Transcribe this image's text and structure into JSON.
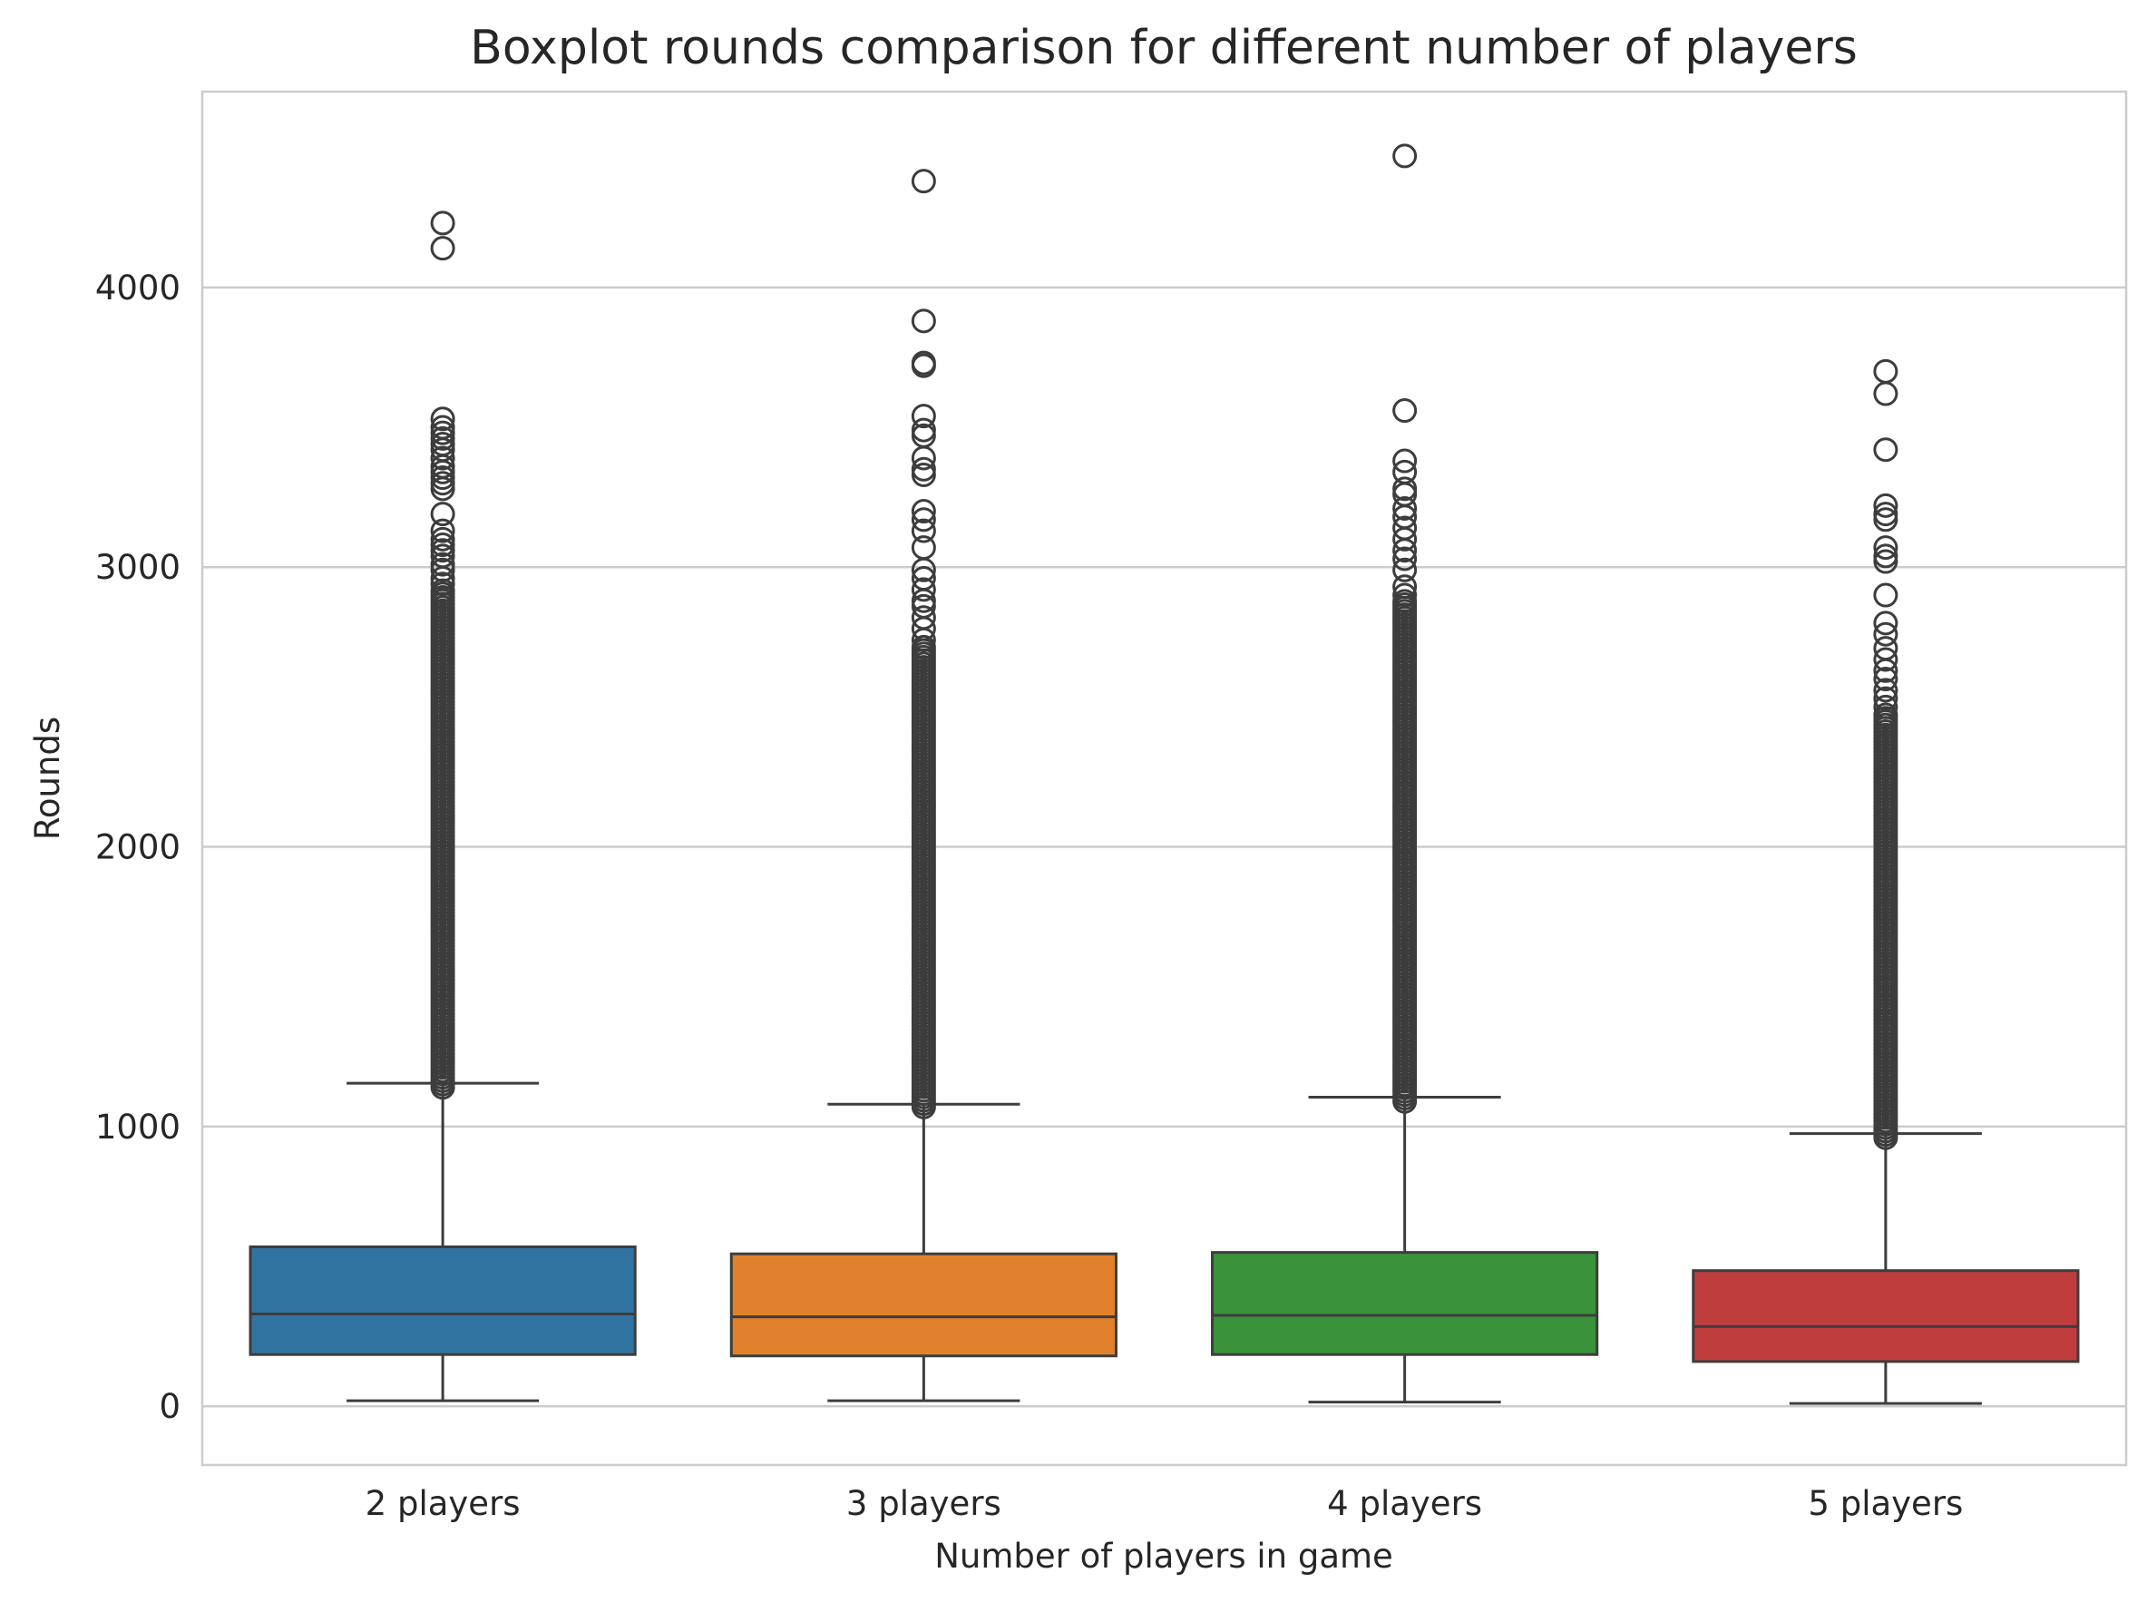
{
  "chart_data": {
    "type": "boxplot",
    "title": "Boxplot rounds comparison for different number of players",
    "xlabel": "Number of players in game",
    "ylabel": "Rounds",
    "categories": [
      "2 players",
      "3 players",
      "4 players",
      "5 players"
    ],
    "y_ticks": [
      0,
      1000,
      2000,
      3000,
      4000
    ],
    "y_tick_labels": [
      "0",
      "1000",
      "2000",
      "3000",
      "4000"
    ],
    "ylim": [
      -210,
      4700
    ],
    "grid": "horizontal",
    "legend": "none",
    "colors": [
      "#3274a1",
      "#e1812c",
      "#3a923a",
      "#c03d3e"
    ],
    "edge_color": "#3d3d3d",
    "grid_color": "#cccccc",
    "boxes": [
      {
        "category": "2 players",
        "whisker_low": 20,
        "q1": 185,
        "median": 330,
        "q3": 570,
        "whisker_high": 1155,
        "outlier_dense_range": [
          1140,
          2920
        ],
        "outliers": [
          2940,
          2960,
          2990,
          3010,
          3040,
          3060,
          3080,
          3100,
          3130,
          3190,
          3280,
          3300,
          3320,
          3340,
          3360,
          3390,
          3420,
          3440,
          3460,
          3480,
          3500,
          3530,
          4140,
          4230
        ]
      },
      {
        "category": "3 players",
        "whisker_low": 20,
        "q1": 180,
        "median": 320,
        "q3": 545,
        "whisker_high": 1080,
        "outlier_dense_range": [
          1070,
          2720
        ],
        "outliers": [
          2740,
          2780,
          2820,
          2860,
          2880,
          2920,
          2960,
          2990,
          3070,
          3130,
          3170,
          3200,
          3330,
          3350,
          3390,
          3470,
          3490,
          3540,
          3720,
          3730,
          3880,
          4380
        ]
      },
      {
        "category": "4 players",
        "whisker_low": 15,
        "q1": 185,
        "median": 325,
        "q3": 550,
        "whisker_high": 1105,
        "outlier_dense_range": [
          1090,
          2880
        ],
        "outliers": [
          2900,
          2930,
          2990,
          3030,
          3060,
          3100,
          3140,
          3180,
          3210,
          3260,
          3280,
          3340,
          3380,
          3560,
          4470
        ]
      },
      {
        "category": "5 players",
        "whisker_low": 10,
        "q1": 160,
        "median": 285,
        "q3": 485,
        "whisker_high": 975,
        "outlier_dense_range": [
          960,
          2480
        ],
        "outliers": [
          2500,
          2530,
          2560,
          2600,
          2630,
          2670,
          2710,
          2760,
          2800,
          2900,
          3020,
          3040,
          3070,
          3170,
          3190,
          3220,
          3420,
          3620,
          3700
        ]
      }
    ]
  }
}
